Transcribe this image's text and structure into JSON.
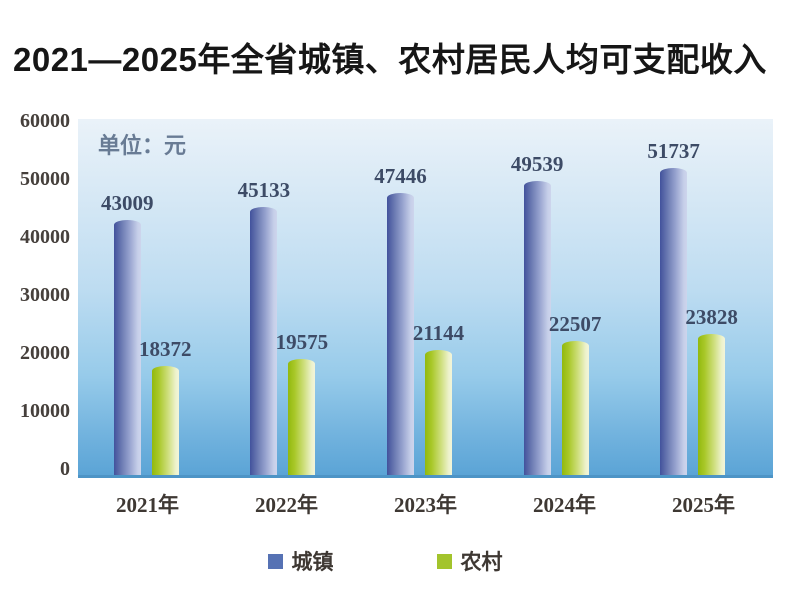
{
  "title": "2021—2025年全省城镇、农村居民人均可支配收入",
  "chart_data": {
    "type": "bar",
    "title": "2021—2025年全省城镇、农村居民人均可支配收入",
    "unit": "单位：元",
    "categories": [
      "2021年",
      "2022年",
      "2023年",
      "2024年",
      "2025年"
    ],
    "series": [
      {
        "name": "城镇",
        "color": "#5672b4",
        "bar_gradient": [
          "#42529c",
          "#cdd5ec"
        ],
        "values": [
          43009,
          45133,
          47446,
          49539,
          51737
        ]
      },
      {
        "name": "农村",
        "color": "#a3c42c",
        "bar_gradient": [
          "#92b90e",
          "#f2f5da"
        ],
        "values": [
          18372,
          19575,
          21144,
          22507,
          23828
        ]
      }
    ],
    "ylim": [
      0,
      60000
    ],
    "ytick_labels": [
      "60000",
      "50000",
      "40000",
      "30000",
      "20000",
      "10000",
      "0"
    ],
    "grid": false,
    "legend_position": "bottom",
    "plot_background": [
      "#eaf2f9",
      "#5ba4d6"
    ],
    "axis_label_color": "#46403c",
    "value_label_color": "#3d4b66"
  }
}
